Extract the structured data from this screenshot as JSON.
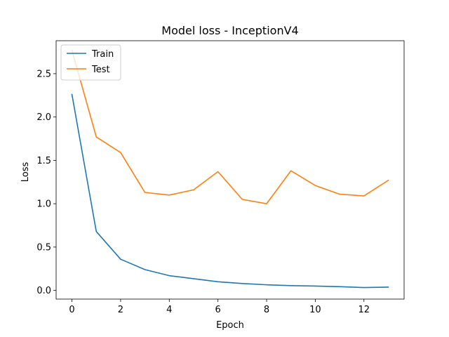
{
  "chart_data": {
    "type": "line",
    "title": "Model loss - InceptionV4",
    "xlabel": "Epoch",
    "ylabel": "Loss",
    "xlim": [
      -0.65,
      13.65
    ],
    "ylim": [
      -0.1,
      2.88
    ],
    "xticks": [
      0,
      2,
      4,
      6,
      8,
      10,
      12
    ],
    "xtick_labels": [
      "0",
      "2",
      "4",
      "6",
      "8",
      "10",
      "12"
    ],
    "yticks": [
      0.0,
      0.5,
      1.0,
      1.5,
      2.0,
      2.5
    ],
    "ytick_labels": [
      "0.0",
      "0.5",
      "1.0",
      "1.5",
      "2.0",
      "2.5"
    ],
    "x": [
      0,
      1,
      2,
      3,
      4,
      5,
      6,
      7,
      8,
      9,
      10,
      11,
      12,
      13
    ],
    "grid": false,
    "legend_position": "upper-left",
    "series": [
      {
        "name": "Train",
        "color": "#1f77b4",
        "values": [
          2.26,
          0.68,
          0.36,
          0.24,
          0.17,
          0.135,
          0.1,
          0.08,
          0.065,
          0.055,
          0.05,
          0.043,
          0.033,
          0.038
        ]
      },
      {
        "name": "Test",
        "color": "#ff7f0e",
        "values": [
          2.77,
          1.77,
          1.59,
          1.13,
          1.1,
          1.16,
          1.37,
          1.05,
          1.0,
          1.38,
          1.21,
          1.11,
          1.09,
          1.27
        ]
      }
    ]
  }
}
